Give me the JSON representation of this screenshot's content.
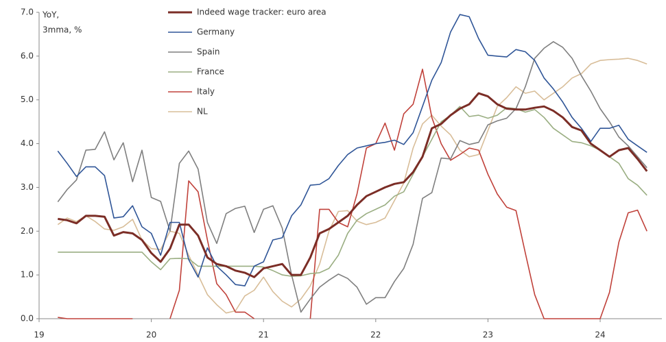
{
  "chart_data": {
    "type": "line",
    "y_label": [
      "YoY,",
      "3mma, %"
    ],
    "x": [
      19.167,
      19.25,
      19.333,
      19.417,
      19.5,
      19.583,
      19.667,
      19.75,
      19.833,
      19.917,
      20,
      20.083,
      20.167,
      20.25,
      20.333,
      20.417,
      20.5,
      20.583,
      20.667,
      20.75,
      20.833,
      20.917,
      21,
      21.083,
      21.167,
      21.25,
      21.333,
      21.417,
      21.5,
      21.583,
      21.667,
      21.75,
      21.833,
      21.917,
      22,
      22.083,
      22.167,
      22.25,
      22.333,
      22.417,
      22.5,
      22.583,
      22.667,
      22.75,
      22.833,
      22.917,
      23,
      23.083,
      23.167,
      23.25,
      23.333,
      23.417,
      23.5,
      23.583,
      23.667,
      23.75,
      23.833,
      23.917,
      24,
      24.083,
      24.167,
      24.25,
      24.333,
      24.417
    ],
    "series": [
      {
        "name": "Indeed wage tracker: euro area",
        "color": "#7b2d26",
        "width": 3,
        "values": [
          2.28,
          2.25,
          2.18,
          2.35,
          2.35,
          2.33,
          1.9,
          1.98,
          1.95,
          1.8,
          1.5,
          1.3,
          1.6,
          2.15,
          2.15,
          1.9,
          1.4,
          1.25,
          1.2,
          1.1,
          1.05,
          0.95,
          1.15,
          1.2,
          1.25,
          1.0,
          1.0,
          1.4,
          1.95,
          2.05,
          2.2,
          2.35,
          2.6,
          2.8,
          2.9,
          3.0,
          3.08,
          3.12,
          3.35,
          3.7,
          4.35,
          4.45,
          4.65,
          4.8,
          4.9,
          5.15,
          5.08,
          4.9,
          4.8,
          4.78,
          4.78,
          4.82,
          4.85,
          4.75,
          4.6,
          4.38,
          4.3,
          4.0,
          3.85,
          3.7,
          3.85,
          3.9,
          3.65,
          3.37
        ]
      },
      {
        "name": "Germany",
        "color": "#2f5597",
        "width": 1.6,
        "values": [
          3.83,
          3.55,
          3.25,
          3.47,
          3.47,
          3.27,
          2.3,
          2.33,
          2.58,
          2.1,
          1.95,
          1.45,
          2.2,
          2.2,
          1.35,
          0.95,
          1.62,
          1.2,
          1.0,
          0.78,
          0.75,
          1.2,
          1.3,
          1.8,
          1.85,
          2.35,
          2.6,
          3.05,
          3.07,
          3.2,
          3.5,
          3.75,
          3.9,
          3.95,
          4.0,
          4.03,
          4.08,
          3.98,
          4.25,
          4.85,
          5.45,
          5.85,
          6.55,
          6.95,
          6.9,
          6.4,
          6.02,
          6.0,
          5.98,
          6.15,
          6.1,
          5.9,
          5.5,
          5.25,
          4.95,
          4.6,
          4.35,
          4.05,
          4.35,
          4.35,
          4.42,
          4.1,
          3.95,
          3.8
        ]
      },
      {
        "name": "Spain",
        "color": "#7f7f7f",
        "width": 1.6,
        "values": [
          2.67,
          2.95,
          3.17,
          3.85,
          3.87,
          4.27,
          3.63,
          4.02,
          3.13,
          3.85,
          2.77,
          2.68,
          2.0,
          3.55,
          3.83,
          3.42,
          2.2,
          1.72,
          2.4,
          2.52,
          2.57,
          1.97,
          2.5,
          2.58,
          2.07,
          1.0,
          0.15,
          0.45,
          0.72,
          0.88,
          1.02,
          0.92,
          0.72,
          0.33,
          0.48,
          0.48,
          0.85,
          1.15,
          1.7,
          2.75,
          2.88,
          3.67,
          3.65,
          4.07,
          3.98,
          4.03,
          4.43,
          4.52,
          4.58,
          4.8,
          5.3,
          5.95,
          6.18,
          6.33,
          6.2,
          5.95,
          5.55,
          5.2,
          4.8,
          4.5,
          4.15,
          3.95,
          3.7,
          3.45
        ]
      },
      {
        "name": "France",
        "color": "#9aae82",
        "width": 1.6,
        "values": [
          1.52,
          1.52,
          1.52,
          1.52,
          1.52,
          1.52,
          1.52,
          1.52,
          1.52,
          1.52,
          1.3,
          1.12,
          1.37,
          1.38,
          1.37,
          1.2,
          1.2,
          1.2,
          1.2,
          1.2,
          1.2,
          1.2,
          1.18,
          1.1,
          1.0,
          0.97,
          0.98,
          1.03,
          1.05,
          1.15,
          1.45,
          1.95,
          2.25,
          2.4,
          2.5,
          2.6,
          2.8,
          2.9,
          3.3,
          3.7,
          4.1,
          4.5,
          4.65,
          4.85,
          4.62,
          4.65,
          4.58,
          4.65,
          4.82,
          4.8,
          4.72,
          4.78,
          4.6,
          4.35,
          4.2,
          4.05,
          4.02,
          3.95,
          3.85,
          3.7,
          3.55,
          3.2,
          3.05,
          2.82
        ]
      },
      {
        "name": "Italy",
        "color": "#c0413a",
        "width": 1.6,
        "values": [
          0.03,
          0,
          0,
          0,
          0,
          0,
          0,
          0,
          0,
          null,
          null,
          null,
          0,
          0.65,
          3.15,
          2.9,
          1.8,
          0.8,
          0.55,
          0.15,
          0.15,
          0,
          null,
          null,
          null,
          null,
          null,
          0,
          2.5,
          2.5,
          2.2,
          2.1,
          2.85,
          3.9,
          4.0,
          4.47,
          3.85,
          4.68,
          4.9,
          5.7,
          4.6,
          4.0,
          3.62,
          3.75,
          3.9,
          3.85,
          3.3,
          2.85,
          2.55,
          2.47,
          1.5,
          0.55,
          0,
          0,
          0,
          0,
          0,
          0,
          0,
          0.6,
          1.75,
          2.42,
          2.48,
          2.0
        ]
      },
      {
        "name": "NL",
        "color": "#d8bd98",
        "width": 1.6,
        "values": [
          2.15,
          2.3,
          2.22,
          2.35,
          2.22,
          2.05,
          2.02,
          2.1,
          2.27,
          1.8,
          1.6,
          1.58,
          2.0,
          1.95,
          1.45,
          1.0,
          0.55,
          0.32,
          0.13,
          0.18,
          0.52,
          0.65,
          0.95,
          0.62,
          0.4,
          0.27,
          0.45,
          0.75,
          1.25,
          2.0,
          2.45,
          2.47,
          2.23,
          2.15,
          2.2,
          2.3,
          2.7,
          3.1,
          3.9,
          4.45,
          4.65,
          4.4,
          4.2,
          3.85,
          3.7,
          3.75,
          4.3,
          4.85,
          5.05,
          5.3,
          5.15,
          5.2,
          5.0,
          5.15,
          5.3,
          5.5,
          5.6,
          5.82,
          5.9,
          5.92,
          5.93,
          5.95,
          5.9,
          5.82
        ]
      }
    ],
    "xlim": [
      19,
      24.55
    ],
    "xticks": [
      19,
      20,
      21,
      22,
      23,
      24
    ],
    "ylim": [
      0,
      7
    ],
    "yticks": [
      {
        "value": 0,
        "label": "0.0"
      },
      {
        "value": 1,
        "label": "1.0"
      },
      {
        "value": 2,
        "label": "2.0"
      },
      {
        "value": 3,
        "label": "3.0"
      },
      {
        "value": 4,
        "label": "4.0"
      },
      {
        "value": 5,
        "label": "5.0"
      },
      {
        "value": 6,
        "label": "6.0"
      },
      {
        "value": 7,
        "label": "7.0"
      }
    ],
    "legend": "top"
  }
}
